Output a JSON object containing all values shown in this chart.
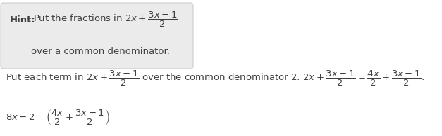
{
  "bg_color": "#ffffff",
  "hint_box_color": "#ebebeb",
  "hint_box_border": "#cccccc",
  "text_color": "#404040",
  "fontsize": 9.5,
  "math_fontsize": 9.5,
  "hint_line1_plain": "Put the fractions in $2x + \\dfrac{3x-1}{2}$",
  "hint_line2": "over a common denominator.",
  "main_line1a": "Put each term in $2x + \\dfrac{3x-1}{2}$ over the common denominator 2: $2x + \\dfrac{3x-1}{2} = \\dfrac{4x}{2} + \\dfrac{3x-1}{2}$:",
  "main_line2": "$8x - 2 = \\left(\\dfrac{4x}{2} + \\dfrac{3x-1}{2}\\right)$"
}
